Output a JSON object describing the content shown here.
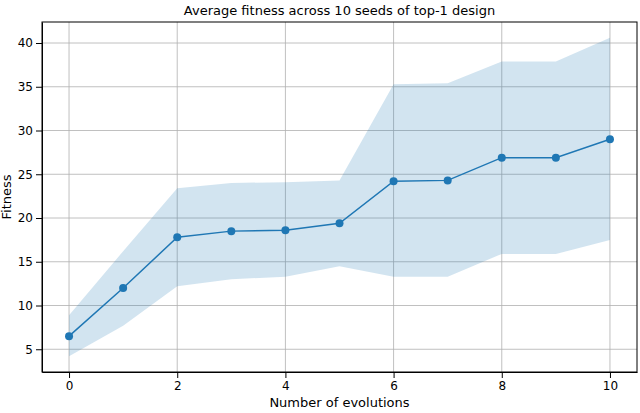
{
  "chart_data": {
    "type": "line",
    "title": "Average fitness across 10 seeds of top-1 design",
    "x_label": "Number of evolutions",
    "y_label": "Fitness",
    "x": [
      0,
      1,
      2,
      3,
      4,
      5,
      6,
      7,
      8,
      9,
      10
    ],
    "series": [
      {
        "color": "#1f77b4",
        "marker": "circle",
        "line_style": "solid",
        "values": [
          6.5,
          12.0,
          17.8,
          18.5,
          18.6,
          19.4,
          24.2,
          24.3,
          26.9,
          26.9,
          29.0
        ],
        "lower": [
          4.2,
          7.7,
          12.2,
          13.0,
          13.3,
          14.5,
          13.3,
          13.3,
          15.9,
          15.9,
          17.5
        ],
        "upper": [
          8.9,
          16.2,
          23.4,
          24.0,
          24.1,
          24.3,
          35.3,
          35.4,
          37.9,
          37.9,
          40.6
        ]
      }
    ],
    "xlim": [
      -0.5,
      10.5
    ],
    "xticks": [
      0,
      2,
      4,
      6,
      8,
      10
    ],
    "ylim": [
      2.4,
      42.4
    ],
    "yticks": [
      5,
      10,
      15,
      20,
      25,
      30,
      35,
      40
    ],
    "grid": true
  }
}
